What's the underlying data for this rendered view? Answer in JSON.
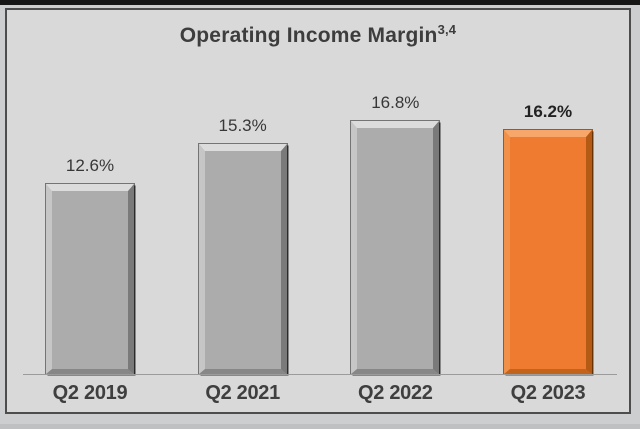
{
  "page": {
    "top_strip_color": "#161616",
    "card_background": "#d9d9d9",
    "card_border_color": "#4d4d4d"
  },
  "chart_data": {
    "type": "bar",
    "title": "Operating Income Margin",
    "title_superscript": "3,4",
    "xlabel": "",
    "ylabel": "",
    "categories": [
      "Q2 2019",
      "Q2 2021",
      "Q2 2022",
      "Q2 2023"
    ],
    "values": [
      12.6,
      15.3,
      16.8,
      16.2
    ],
    "value_labels": [
      "12.6%",
      "15.3%",
      "16.8%",
      "16.2%"
    ],
    "value_suffix": "%",
    "highlight_index": 3,
    "bar_color": "#ACACAC",
    "highlight_color": "#EE7B30",
    "label_color": "#373737",
    "category_label_color": "#3f3f3f",
    "baseline_color": "#9b9b9b",
    "grid": "off",
    "legend": "none"
  }
}
